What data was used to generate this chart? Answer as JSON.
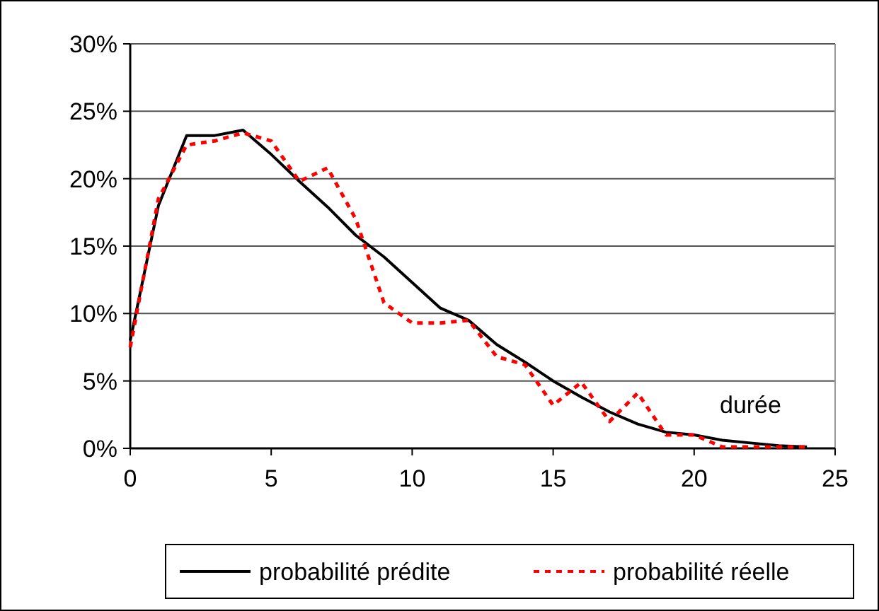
{
  "chart_data": {
    "type": "line",
    "xlabel": "durée",
    "x": [
      0,
      1,
      2,
      3,
      4,
      5,
      6,
      7,
      8,
      9,
      10,
      11,
      12,
      13,
      14,
      15,
      16,
      17,
      18,
      19,
      20,
      21,
      22,
      23,
      24
    ],
    "series": [
      {
        "name": "probabilité prédite",
        "color": "#000000",
        "line_style": "solid",
        "values": [
          8,
          18,
          23.2,
          23.2,
          23.6,
          21.8,
          19.8,
          17.9,
          15.8,
          14.2,
          12.3,
          10.4,
          9.5,
          7.7,
          6.4,
          5.0,
          3.8,
          2.7,
          1.8,
          1.2,
          1.0,
          0.6,
          0.4,
          0.2,
          0.1
        ]
      },
      {
        "name": "probabilité réelle",
        "color": "#ff0000",
        "line_style": "dashed",
        "values": [
          7.5,
          18.5,
          22.5,
          22.8,
          23.4,
          22.8,
          19.8,
          20.8,
          17,
          10.8,
          9.3,
          9.3,
          9.5,
          6.8,
          6.2,
          3.2,
          4.9,
          2.0,
          4.1,
          1.0,
          1.0,
          0.1,
          0.1,
          0.1,
          0.1
        ]
      }
    ],
    "xlim": [
      0,
      25
    ],
    "xticks": [
      0,
      5,
      10,
      15,
      20,
      25
    ],
    "ylim": [
      0,
      30
    ],
    "yticks": [
      {
        "value": 0,
        "label": "0%"
      },
      {
        "value": 5,
        "label": "5%"
      },
      {
        "value": 10,
        "label": "10%"
      },
      {
        "value": 15,
        "label": "15%"
      },
      {
        "value": 20,
        "label": "20%"
      },
      {
        "value": 25,
        "label": "25%"
      },
      {
        "value": 30,
        "label": "30%"
      }
    ],
    "grid": "y",
    "legend": "bottom",
    "marker": "none"
  }
}
